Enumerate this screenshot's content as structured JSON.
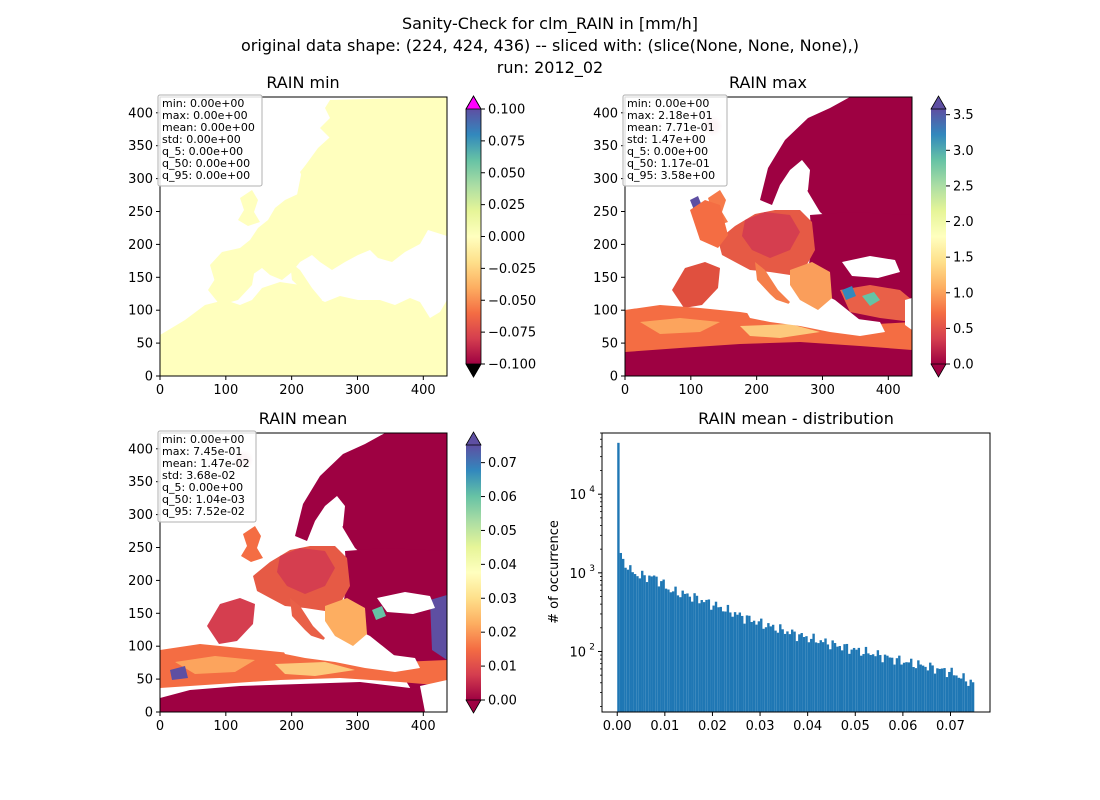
{
  "figure": {
    "title_lines": [
      "Sanity-Check for clm_RAIN in [mm/h]",
      "original data shape: (224, 424, 436) -- sliced with: (slice(None, None, None),)",
      "run: 2012_02"
    ]
  },
  "panels": {
    "min": {
      "title": "RAIN min",
      "x_ticks": [
        "0",
        "100",
        "200",
        "300",
        "400"
      ],
      "y_ticks": [
        "0",
        "50",
        "100",
        "150",
        "200",
        "250",
        "300",
        "350",
        "400"
      ],
      "colorbar_ticks": [
        "0.100",
        "0.075",
        "0.050",
        "0.025",
        "0.000",
        "−0.025",
        "−0.050",
        "−0.075",
        "−0.100"
      ],
      "stats": [
        "min: 0.00e+00",
        "max: 0.00e+00",
        "mean: 0.00e+00",
        "std: 0.00e+00",
        "q_5: 0.00e+00",
        "q_50: 0.00e+00",
        "q_95: 0.00e+00"
      ],
      "land_color": "#ffffbe",
      "over_color": "#ff00ff",
      "under_color": "#000000"
    },
    "max": {
      "title": "RAIN max",
      "x_ticks": [
        "0",
        "100",
        "200",
        "300",
        "400"
      ],
      "y_ticks": [
        "0",
        "50",
        "100",
        "150",
        "200",
        "250",
        "300",
        "350",
        "400"
      ],
      "colorbar_ticks": [
        "3.5",
        "3.0",
        "2.5",
        "2.0",
        "1.5",
        "1.0",
        "0.5",
        "0.0"
      ],
      "stats": [
        "min: 0.00e+00",
        "max: 2.18e+01",
        "mean: 7.71e-01",
        "std: 1.47e+00",
        "q_5: 0.00e+00",
        "q_50: 1.17e-01",
        "q_95: 3.58e+00"
      ]
    },
    "mean": {
      "title": "RAIN mean",
      "x_ticks": [
        "0",
        "100",
        "200",
        "300",
        "400"
      ],
      "y_ticks": [
        "0",
        "50",
        "100",
        "150",
        "200",
        "250",
        "300",
        "350",
        "400"
      ],
      "colorbar_ticks": [
        "0.07",
        "0.06",
        "0.05",
        "0.04",
        "0.03",
        "0.02",
        "0.01",
        "0.00"
      ],
      "stats": [
        "min: 0.00e+00",
        "max: 7.45e-01",
        "mean: 1.47e-02",
        "std: 3.68e-02",
        "q_5: 0.00e+00",
        "q_50: 1.04e-03",
        "q_95: 7.52e-02"
      ]
    },
    "hist": {
      "title": "RAIN mean - distribution",
      "ylabel": "# of occurrence",
      "bar_color": "#1f77b4"
    }
  },
  "colormap": [
    "#9e0142",
    "#d53e4f",
    "#f46d43",
    "#fdae61",
    "#fee08b",
    "#ffffbf",
    "#e6f598",
    "#abdda4",
    "#66c2a5",
    "#3288bd",
    "#5e4fa2"
  ],
  "chart_data": {
    "type": "bar",
    "title": "RAIN mean - distribution",
    "xlabel": "",
    "ylabel": "# of occurrence",
    "xlim": [
      -0.0032,
      0.0783
    ],
    "ylim": [
      17,
      60000
    ],
    "yscale": "log",
    "x_ticks": [
      0.0,
      0.01,
      0.02,
      0.03,
      0.04,
      0.05,
      0.06,
      0.07
    ],
    "x_tick_labels": [
      "0.00",
      "0.01",
      "0.02",
      "0.03",
      "0.04",
      "0.05",
      "0.06",
      "0.07"
    ],
    "y_ticks": [
      100,
      1000,
      10000
    ],
    "y_tick_labels": [
      "10^2",
      "10^3",
      "10^4"
    ],
    "bin_start": 0.0,
    "bin_width": 0.0005,
    "anchors": [
      [
        0.0,
        45000
      ],
      [
        0.0005,
        2000
      ],
      [
        0.001,
        1600
      ],
      [
        0.002,
        1250
      ],
      [
        0.003,
        1050
      ],
      [
        0.004,
        950
      ],
      [
        0.006,
        900
      ],
      [
        0.008,
        880
      ],
      [
        0.01,
        700
      ],
      [
        0.011,
        600
      ],
      [
        0.012,
        580
      ],
      [
        0.015,
        520
      ],
      [
        0.02,
        400
      ],
      [
        0.025,
        300
      ],
      [
        0.03,
        230
      ],
      [
        0.035,
        185
      ],
      [
        0.04,
        150
      ],
      [
        0.045,
        125
      ],
      [
        0.05,
        105
      ],
      [
        0.055,
        90
      ],
      [
        0.06,
        75
      ],
      [
        0.065,
        65
      ],
      [
        0.07,
        55
      ],
      [
        0.0745,
        40
      ]
    ]
  }
}
